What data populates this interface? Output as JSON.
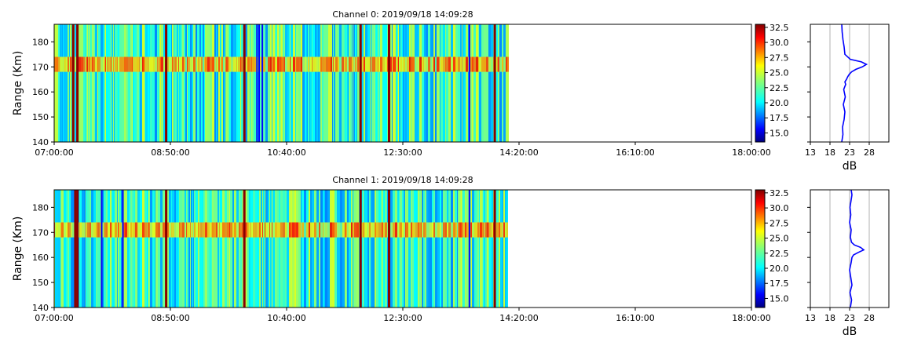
{
  "chart_data": [
    {
      "type": "heatmap",
      "title": "Channel 0: 2019/09/18 14:09:28",
      "ylabel": "Range (Km)",
      "xlabel": "",
      "x_ticks": [
        "07:00:00",
        "08:50:00",
        "10:40:00",
        "12:30:00",
        "14:20:00",
        "16:10:00",
        "18:00:00"
      ],
      "x_range": [
        "07:00:00",
        "18:00:00"
      ],
      "data_end_time": "14:09:28",
      "y_ticks": [
        140,
        150,
        160,
        170,
        180
      ],
      "ylim": [
        140,
        187
      ],
      "band_range_km": [
        168,
        174
      ],
      "colorbar": {
        "colormap": "jet",
        "range": [
          13.5,
          33
        ],
        "ticks": [
          "15.0",
          "17.5",
          "20.0",
          "22.5",
          "25.0",
          "27.5",
          "30.0",
          "32.5"
        ]
      },
      "strong_columns_time": [
        "07:18:00",
        "07:22:00",
        "08:46:00",
        "10:00:00",
        "11:50:00",
        "12:17:00",
        "13:57:00"
      ],
      "weak_columns_time": [
        "10:12:00",
        "10:14:00",
        "10:17:00",
        "13:33:00"
      ],
      "profile": {
        "type": "line",
        "xlabel": "dB",
        "x_ticks": [
          13,
          18,
          23,
          28
        ],
        "xlim": [
          13,
          33
        ],
        "color": "#0000ff",
        "range_km": [
          140,
          143,
          146,
          149,
          152,
          155,
          158,
          161,
          163,
          164,
          165,
          166,
          167,
          168,
          169,
          170,
          171,
          172,
          173,
          175,
          178,
          181,
          184,
          187
        ],
        "db": [
          21,
          21.3,
          21.2,
          21.6,
          21.8,
          21.4,
          21.9,
          21.5,
          22,
          21.8,
          22.2,
          22.5,
          22.9,
          23.5,
          24.6,
          26.2,
          27.3,
          26.0,
          23.2,
          21.8,
          21.6,
          21.3,
          21.1,
          21.0
        ]
      }
    },
    {
      "type": "heatmap",
      "title": "Channel 1: 2019/09/18 14:09:28",
      "ylabel": "Range (Km)",
      "xlabel": "",
      "x_ticks": [
        "07:00:00",
        "08:50:00",
        "10:40:00",
        "12:30:00",
        "14:20:00",
        "16:10:00",
        "18:00:00"
      ],
      "x_range": [
        "07:00:00",
        "18:00:00"
      ],
      "data_end_time": "14:09:28",
      "y_ticks": [
        140,
        150,
        160,
        170,
        180
      ],
      "ylim": [
        140,
        187
      ],
      "band_range_km": [
        168,
        174
      ],
      "colorbar": {
        "colormap": "jet",
        "range": [
          13.5,
          33
        ],
        "ticks": [
          "15.0",
          "17.5",
          "20.0",
          "22.5",
          "25.0",
          "27.5",
          "30.0",
          "32.5"
        ]
      },
      "strong_columns_time": [
        "07:20:00",
        "07:22:00",
        "08:46:00",
        "10:00:00",
        "11:50:00",
        "12:17:00",
        "13:57:00"
      ],
      "weak_columns_time": [
        "07:45:00",
        "08:05:00",
        "13:33:00"
      ],
      "profile": {
        "type": "line",
        "xlabel": "dB",
        "x_ticks": [
          13,
          18,
          23,
          28
        ],
        "xlim": [
          13,
          33
        ],
        "color": "#0000ff",
        "range_km": [
          140,
          143,
          146,
          149,
          152,
          155,
          158,
          160,
          161,
          162,
          163,
          164,
          165,
          166,
          168,
          171,
          174,
          177,
          180,
          183,
          185,
          187
        ],
        "db": [
          23.2,
          23.5,
          23.1,
          23.6,
          23.3,
          23.0,
          23.4,
          23.6,
          24.0,
          25.2,
          26.6,
          25.8,
          24.2,
          23.5,
          23.2,
          23.4,
          23.0,
          23.3,
          23.1,
          23.4,
          23.6,
          23.4
        ]
      }
    }
  ]
}
